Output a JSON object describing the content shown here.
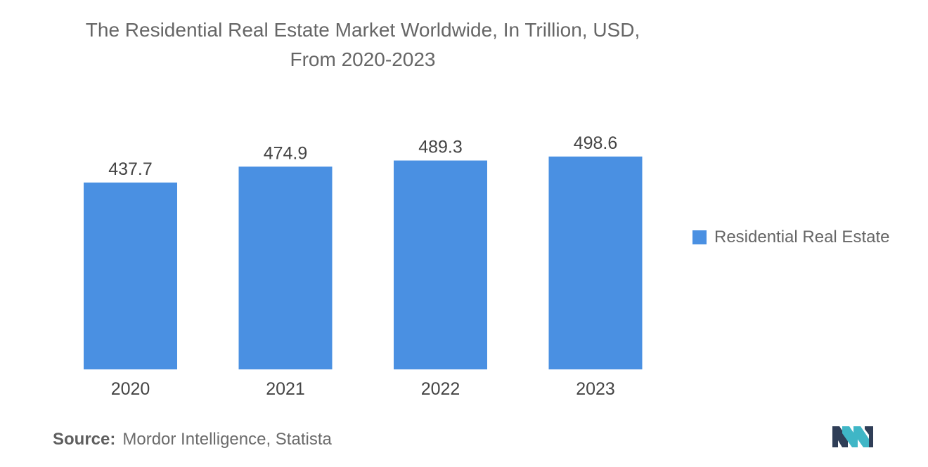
{
  "title_line1": "The Residential Real Estate Market Worldwide, In Trillion, USD,",
  "title_line2": "From 2020-2023",
  "legend": {
    "label": "Residential Real Estate",
    "color": "#4a90e2"
  },
  "source": {
    "label": "Source:",
    "text": "Mordor Intelligence, Statista"
  },
  "logo": {
    "icon": "mordor-intelligence-logo-icon",
    "colors": [
      "#2f3e57",
      "#3fb6c6"
    ]
  },
  "chart_data": {
    "type": "bar",
    "title": "The Residential Real Estate Market Worldwide, In Trillion, USD, From 2020-2023",
    "categories": [
      "2020",
      "2021",
      "2022",
      "2023"
    ],
    "series": [
      {
        "name": "Residential Real Estate",
        "values": [
          437.7,
          474.9,
          489.3,
          498.6
        ],
        "color": "#4a90e2"
      }
    ],
    "value_labels": [
      "437.7",
      "474.9",
      "489.3",
      "498.6"
    ],
    "xlabel": "",
    "ylabel": "",
    "grid": false,
    "legend_position": "right"
  }
}
